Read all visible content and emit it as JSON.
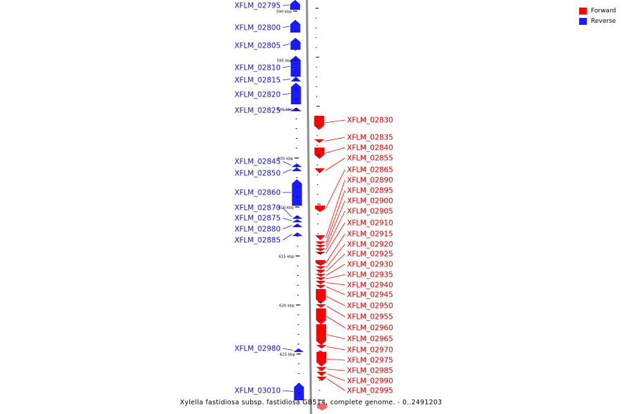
{
  "legend": {
    "forward_label": "Forward",
    "reverse_label": "Reverse",
    "forward_color": "#ff0000",
    "reverse_color": "#1a1aff"
  },
  "footer": {
    "text": "Xylella fastidiosa subsp. fastidiosa GB514, complete genome. - 0..2491203"
  },
  "axis": {
    "unit": "kbp",
    "ticks": [
      590,
      595,
      600,
      605,
      610,
      615,
      620,
      625
    ],
    "tick_labels": [
      "590 kbp",
      "595 kbp",
      "600 kbp",
      "605 kbp",
      "610 kbp",
      "615 kbp",
      "620 kbp",
      "625 kbp"
    ]
  },
  "reverse_genes": [
    "XFLM_02795",
    "XFLM_02800",
    "XFLM_02805",
    "XFLM_02810",
    "XFLM_02815",
    "XFLM_02820",
    "XFLM_02825",
    "XFLM_02845",
    "XFLM_02850",
    "XFLM_02860",
    "XFLM_02870",
    "XFLM_02875",
    "XFLM_02880",
    "XFLM_02885",
    "XFLM_02980",
    "XFLM_03010"
  ],
  "forward_genes": [
    "XFLM_02830",
    "XFLM_02835",
    "XFLM_02840",
    "XFLM_02855",
    "XFLM_02865",
    "XFLM_02890",
    "XFLM_02895",
    "XFLM_02900",
    "XFLM_02905",
    "XFLM_02910",
    "XFLM_02915",
    "XFLM_02920",
    "XFLM_02925",
    "XFLM_02930",
    "XFLM_02935",
    "XFLM_02940",
    "XFLM_02945",
    "XFLM_02950",
    "XFLM_02955",
    "XFLM_02960",
    "XFLM_02965",
    "XFLM_02970",
    "XFLM_02975",
    "XFLM_02985",
    "XFLM_02990",
    "XFLM_02995"
  ]
}
